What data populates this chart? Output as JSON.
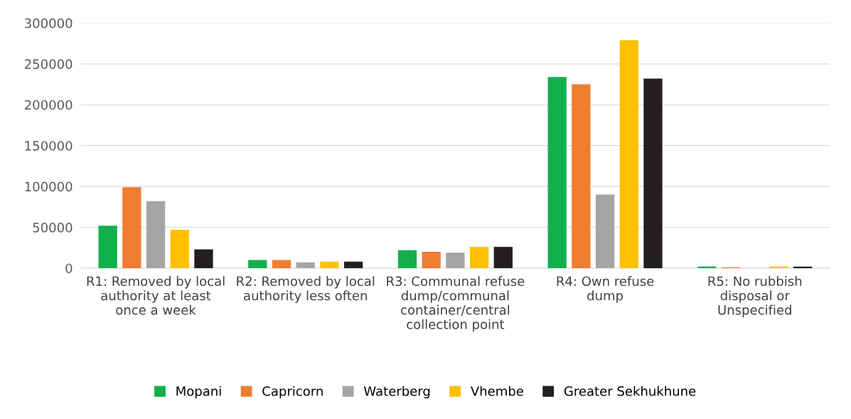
{
  "chart_data": {
    "type": "bar",
    "categories": [
      "R1: Removed by local\nauthority at least\nonce a week",
      "R2: Removed by local\nauthority less often",
      "R3: Communal refuse\ndump/communal\ncontainer/central\ncollection point",
      "R4: Own refuse\ndump",
      "R5: No rubbish\ndisposal or\nUnspecified"
    ],
    "series": [
      {
        "name": "Mopani",
        "color": "#12b04c",
        "values": [
          52000,
          10000,
          22000,
          234000,
          2000
        ]
      },
      {
        "name": "Capricorn",
        "color": "#ed7d31",
        "values": [
          99000,
          10000,
          20000,
          225000,
          1000
        ]
      },
      {
        "name": "Waterberg",
        "color": "#a5a5a5",
        "values": [
          82000,
          7000,
          19000,
          90000,
          null
        ]
      },
      {
        "name": "Vhembe",
        "color": "#ffc000",
        "values": [
          47000,
          8000,
          26000,
          279000,
          2000
        ]
      },
      {
        "name": "Greater Sekhukhune",
        "color": "#231f20",
        "values": [
          23000,
          8000,
          26000,
          232000,
          2000
        ]
      }
    ],
    "ylim": [
      0,
      300000
    ],
    "yticks": [
      0,
      50000,
      100000,
      150000,
      200000,
      250000,
      300000
    ],
    "grid": "y",
    "legend": "bottom"
  }
}
